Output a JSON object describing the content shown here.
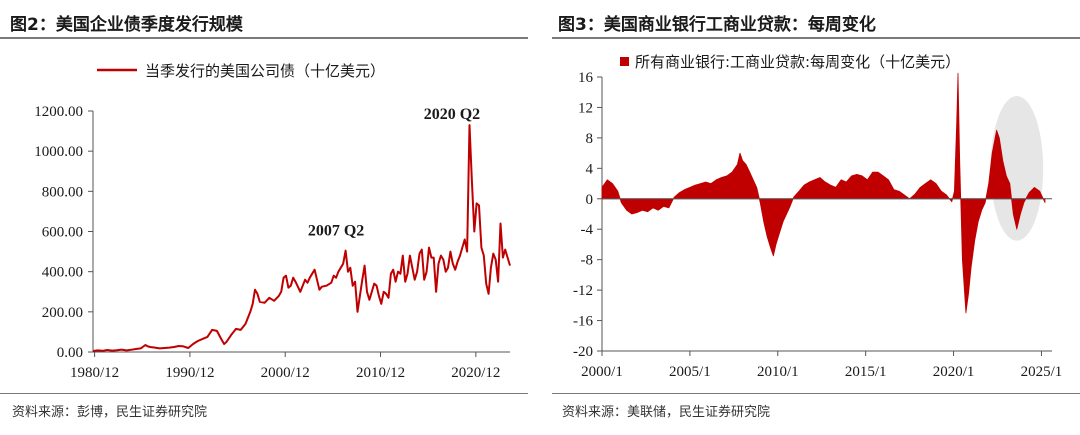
{
  "charts": [
    {
      "figure_title": "图2：美国企业债季度发行规模",
      "source": "资料来源：彭博，民生证券研究院",
      "annotations": [
        {
          "text": "2020 Q2",
          "x": 2020.3,
          "y": 1130
        },
        {
          "text": "2007 Q2",
          "x": 2007.3,
          "y": 505
        }
      ]
    },
    {
      "figure_title": "图3：美国商业银行工商业贷款：每周变化",
      "source": "资料来源：美联储，民生证券研究院"
    }
  ],
  "colors": {
    "series": "#c00000",
    "text": "#1a1a1a",
    "rule": "#7a7a7a",
    "highlight": "#e6e6e6"
  },
  "chart_data": [
    {
      "type": "line",
      "title": "",
      "xlabel": "",
      "ylabel": "",
      "legend_position": "top",
      "grid": false,
      "xlim": [
        1980.75,
        2024.5
      ],
      "ylim": [
        0,
        1200
      ],
      "x_ticks": [
        1980.917,
        1990.917,
        2000.917,
        2010.917,
        2020.917
      ],
      "x_tick_labels": [
        "1980/12",
        "1990/12",
        "2000/12",
        "2010/12",
        "2020/12"
      ],
      "y_ticks": [
        0,
        200,
        400,
        600,
        800,
        1000,
        1200
      ],
      "y_tick_labels": [
        "0.00",
        "200.00",
        "400.00",
        "600.00",
        "800.00",
        "1000.00",
        "1200.00"
      ],
      "series": [
        {
          "name": "当季发行的美国公司债（十亿美元）",
          "color": "#c00000",
          "points": [
            [
              1980.75,
              5
            ],
            [
              1981.25,
              8
            ],
            [
              1981.75,
              6
            ],
            [
              1982.25,
              10
            ],
            [
              1982.75,
              7
            ],
            [
              1983.25,
              9
            ],
            [
              1983.75,
              12
            ],
            [
              1984.25,
              8
            ],
            [
              1984.75,
              11
            ],
            [
              1985.25,
              15
            ],
            [
              1985.75,
              18
            ],
            [
              1986.25,
              35
            ],
            [
              1986.5,
              28
            ],
            [
              1986.75,
              25
            ],
            [
              1987.25,
              22
            ],
            [
              1987.75,
              18
            ],
            [
              1988.25,
              20
            ],
            [
              1988.75,
              22
            ],
            [
              1989.25,
              25
            ],
            [
              1989.75,
              30
            ],
            [
              1990.25,
              28
            ],
            [
              1990.75,
              20
            ],
            [
              1991.25,
              40
            ],
            [
              1991.75,
              55
            ],
            [
              1992.25,
              65
            ],
            [
              1992.75,
              75
            ],
            [
              1993.25,
              110
            ],
            [
              1993.75,
              105
            ],
            [
              1994.25,
              60
            ],
            [
              1994.5,
              40
            ],
            [
              1994.75,
              50
            ],
            [
              1995.25,
              85
            ],
            [
              1995.75,
              115
            ],
            [
              1996.25,
              110
            ],
            [
              1996.75,
              140
            ],
            [
              1997.25,
              200
            ],
            [
              1997.5,
              240
            ],
            [
              1997.75,
              310
            ],
            [
              1998.0,
              290
            ],
            [
              1998.25,
              250
            ],
            [
              1998.75,
              245
            ],
            [
              1999.25,
              270
            ],
            [
              1999.75,
              255
            ],
            [
              2000.25,
              280
            ],
            [
              2000.5,
              300
            ],
            [
              2000.75,
              370
            ],
            [
              2001.0,
              380
            ],
            [
              2001.25,
              320
            ],
            [
              2001.5,
              330
            ],
            [
              2001.75,
              370
            ],
            [
              2002.0,
              350
            ],
            [
              2002.5,
              300
            ],
            [
              2003.0,
              360
            ],
            [
              2003.25,
              345
            ],
            [
              2003.5,
              370
            ],
            [
              2003.75,
              390
            ],
            [
              2004.0,
              410
            ],
            [
              2004.25,
              360
            ],
            [
              2004.5,
              310
            ],
            [
              2004.75,
              325
            ],
            [
              2005.25,
              330
            ],
            [
              2005.75,
              345
            ],
            [
              2006.0,
              380
            ],
            [
              2006.25,
              370
            ],
            [
              2006.5,
              400
            ],
            [
              2006.75,
              420
            ],
            [
              2007.0,
              440
            ],
            [
              2007.25,
              505
            ],
            [
              2007.5,
              400
            ],
            [
              2007.75,
              420
            ],
            [
              2008.0,
              330
            ],
            [
              2008.25,
              350
            ],
            [
              2008.5,
              200
            ],
            [
              2008.75,
              280
            ],
            [
              2009.0,
              360
            ],
            [
              2009.25,
              430
            ],
            [
              2009.5,
              300
            ],
            [
              2009.75,
              260
            ],
            [
              2010.0,
              300
            ],
            [
              2010.25,
              340
            ],
            [
              2010.5,
              330
            ],
            [
              2010.75,
              280
            ],
            [
              2011.0,
              240
            ],
            [
              2011.25,
              300
            ],
            [
              2011.5,
              290
            ],
            [
              2011.75,
              270
            ],
            [
              2012.0,
              390
            ],
            [
              2012.25,
              410
            ],
            [
              2012.5,
              350
            ],
            [
              2012.75,
              400
            ],
            [
              2013.0,
              390
            ],
            [
              2013.25,
              480
            ],
            [
              2013.5,
              350
            ],
            [
              2013.75,
              390
            ],
            [
              2014.0,
              480
            ],
            [
              2014.25,
              420
            ],
            [
              2014.5,
              360
            ],
            [
              2014.75,
              400
            ],
            [
              2015.0,
              490
            ],
            [
              2015.25,
              510
            ],
            [
              2015.5,
              360
            ],
            [
              2015.75,
              400
            ],
            [
              2016.0,
              520
            ],
            [
              2016.25,
              470
            ],
            [
              2016.5,
              470
            ],
            [
              2016.75,
              300
            ],
            [
              2017.0,
              440
            ],
            [
              2017.25,
              480
            ],
            [
              2017.5,
              460
            ],
            [
              2017.75,
              400
            ],
            [
              2018.0,
              420
            ],
            [
              2018.25,
              500
            ],
            [
              2018.5,
              440
            ],
            [
              2018.75,
              410
            ],
            [
              2019.0,
              450
            ],
            [
              2019.25,
              480
            ],
            [
              2019.5,
              520
            ],
            [
              2019.75,
              560
            ],
            [
              2020.0,
              500
            ],
            [
              2020.25,
              1130
            ],
            [
              2020.5,
              850
            ],
            [
              2020.75,
              600
            ],
            [
              2021.0,
              740
            ],
            [
              2021.25,
              730
            ],
            [
              2021.5,
              520
            ],
            [
              2021.75,
              480
            ],
            [
              2022.0,
              340
            ],
            [
              2022.25,
              290
            ],
            [
              2022.5,
              420
            ],
            [
              2022.75,
              490
            ],
            [
              2023.0,
              460
            ],
            [
              2023.25,
              350
            ],
            [
              2023.5,
              640
            ],
            [
              2023.75,
              470
            ],
            [
              2024.0,
              510
            ],
            [
              2024.25,
              470
            ],
            [
              2024.5,
              430
            ]
          ]
        }
      ]
    },
    {
      "type": "area",
      "title": "",
      "xlabel": "",
      "ylabel": "",
      "legend_position": "top",
      "grid": false,
      "xlim": [
        2000.0,
        2025.6
      ],
      "ylim": [
        -20,
        16
      ],
      "x_ticks": [
        2000.0,
        2005.0,
        2010.0,
        2015.0,
        2020.0,
        2025.0
      ],
      "x_tick_labels": [
        "2000/1",
        "2005/1",
        "2010/1",
        "2015/1",
        "2020/1",
        "2025/1"
      ],
      "y_ticks": [
        16,
        12,
        8,
        4,
        0,
        -4,
        -8,
        -12,
        -16,
        -20
      ],
      "y_tick_labels": [
        "16",
        "12",
        "8",
        "4",
        "0",
        "-4",
        "-8",
        "-12",
        "-16",
        "-20"
      ],
      "series": [
        {
          "name": "所有商业银行:工商业贷款:每周变化（十亿美元）",
          "color": "#c00000",
          "points": [
            [
              2000.0,
              1.5
            ],
            [
              2000.3,
              2.5
            ],
            [
              2000.6,
              2.0
            ],
            [
              2000.9,
              1.0
            ],
            [
              2001.1,
              -0.5
            ],
            [
              2001.4,
              -1.5
            ],
            [
              2001.7,
              -2.0
            ],
            [
              2002.0,
              -1.8
            ],
            [
              2002.3,
              -1.5
            ],
            [
              2002.6,
              -1.7
            ],
            [
              2002.9,
              -1.2
            ],
            [
              2003.2,
              -1.5
            ],
            [
              2003.5,
              -1.0
            ],
            [
              2003.8,
              -1.2
            ],
            [
              2004.1,
              0.2
            ],
            [
              2004.4,
              0.8
            ],
            [
              2004.7,
              1.2
            ],
            [
              2005.0,
              1.5
            ],
            [
              2005.3,
              1.8
            ],
            [
              2005.6,
              2.0
            ],
            [
              2005.9,
              2.2
            ],
            [
              2006.2,
              2.0
            ],
            [
              2006.5,
              2.5
            ],
            [
              2006.8,
              2.8
            ],
            [
              2007.1,
              3.0
            ],
            [
              2007.4,
              3.5
            ],
            [
              2007.7,
              4.5
            ],
            [
              2007.85,
              6.0
            ],
            [
              2008.0,
              5.0
            ],
            [
              2008.2,
              4.5
            ],
            [
              2008.4,
              3.5
            ],
            [
              2008.6,
              2.5
            ],
            [
              2008.8,
              1.5
            ],
            [
              2009.0,
              -0.5
            ],
            [
              2009.2,
              -3.0
            ],
            [
              2009.4,
              -5.0
            ],
            [
              2009.6,
              -6.5
            ],
            [
              2009.75,
              -7.5
            ],
            [
              2009.9,
              -6.0
            ],
            [
              2010.1,
              -4.5
            ],
            [
              2010.3,
              -3.0
            ],
            [
              2010.5,
              -2.0
            ],
            [
              2010.7,
              -1.0
            ],
            [
              2010.9,
              0.2
            ],
            [
              2011.2,
              1.0
            ],
            [
              2011.5,
              1.8
            ],
            [
              2011.8,
              2.2
            ],
            [
              2012.1,
              2.5
            ],
            [
              2012.4,
              2.8
            ],
            [
              2012.7,
              2.2
            ],
            [
              2013.0,
              1.8
            ],
            [
              2013.3,
              1.5
            ],
            [
              2013.6,
              2.5
            ],
            [
              2013.9,
              2.2
            ],
            [
              2014.2,
              3.0
            ],
            [
              2014.5,
              3.2
            ],
            [
              2014.8,
              3.0
            ],
            [
              2015.1,
              2.5
            ],
            [
              2015.4,
              3.5
            ],
            [
              2015.7,
              3.5
            ],
            [
              2016.0,
              3.0
            ],
            [
              2016.3,
              2.5
            ],
            [
              2016.6,
              1.2
            ],
            [
              2016.9,
              1.0
            ],
            [
              2017.2,
              0.5
            ],
            [
              2017.5,
              0.0
            ],
            [
              2017.8,
              0.6
            ],
            [
              2018.1,
              1.5
            ],
            [
              2018.4,
              2.0
            ],
            [
              2018.7,
              2.5
            ],
            [
              2019.0,
              2.0
            ],
            [
              2019.3,
              1.0
            ],
            [
              2019.6,
              0.5
            ],
            [
              2019.9,
              -0.4
            ],
            [
              2020.05,
              1.0
            ],
            [
              2020.18,
              10.0
            ],
            [
              2020.25,
              16.5
            ],
            [
              2020.35,
              5.0
            ],
            [
              2020.5,
              -8.0
            ],
            [
              2020.7,
              -15.0
            ],
            [
              2020.85,
              -12.5
            ],
            [
              2021.0,
              -9.0
            ],
            [
              2021.2,
              -5.5
            ],
            [
              2021.4,
              -3.0
            ],
            [
              2021.6,
              -1.5
            ],
            [
              2021.8,
              -0.5
            ],
            [
              2022.0,
              2.0
            ],
            [
              2022.2,
              6.0
            ],
            [
              2022.45,
              9.0
            ],
            [
              2022.6,
              8.0
            ],
            [
              2022.8,
              5.0
            ],
            [
              2023.0,
              3.0
            ],
            [
              2023.2,
              2.0
            ],
            [
              2023.4,
              -2.0
            ],
            [
              2023.6,
              -4.0
            ],
            [
              2023.8,
              -2.0
            ],
            [
              2024.0,
              -0.5
            ],
            [
              2024.3,
              0.8
            ],
            [
              2024.6,
              1.5
            ],
            [
              2024.9,
              1.0
            ],
            [
              2025.2,
              -0.5
            ]
          ]
        }
      ]
    }
  ]
}
